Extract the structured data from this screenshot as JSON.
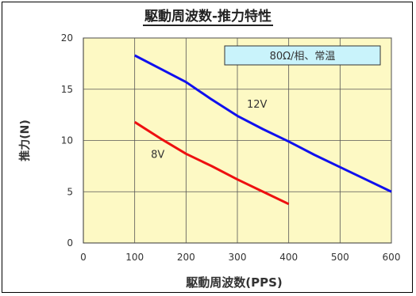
{
  "chart_data": {
    "type": "line",
    "title": "駆動周波数-推力特性",
    "xlabel": "駆動周波数(PPS)",
    "ylabel": "推力(N)",
    "xlim": [
      0,
      600
    ],
    "ylim": [
      0,
      20
    ],
    "x_ticks": [
      0,
      100,
      200,
      300,
      400,
      500,
      600
    ],
    "y_ticks": [
      0,
      5,
      10,
      15,
      20
    ],
    "grid": true,
    "annotation": "80Ω/相、常温",
    "series": [
      {
        "name": "12V",
        "color": "#1010ee",
        "x": [
          100,
          150,
          200,
          250,
          300,
          350,
          400,
          450,
          500,
          550,
          600
        ],
        "y": [
          18.3,
          17.0,
          15.7,
          14.0,
          12.4,
          11.1,
          9.9,
          8.6,
          7.4,
          6.2,
          5.0
        ]
      },
      {
        "name": "8V",
        "color": "#ee1010",
        "x": [
          100,
          150,
          200,
          250,
          300,
          350,
          400
        ],
        "y": [
          11.8,
          10.2,
          8.7,
          7.5,
          6.2,
          5.0,
          3.8
        ]
      }
    ]
  }
}
